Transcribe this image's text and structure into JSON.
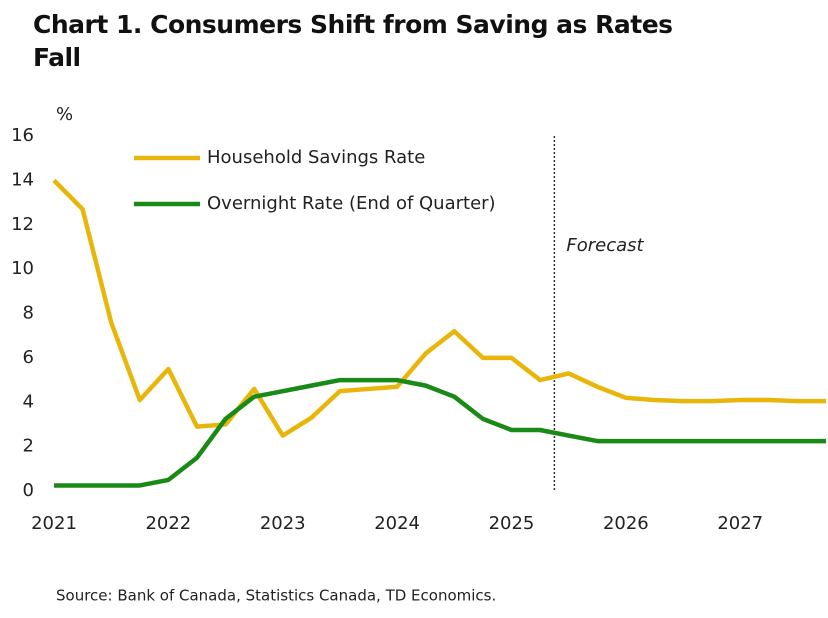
{
  "chart_data": {
    "type": "line",
    "title": "Chart 1. Consumers Shift from Saving as Rates Fall",
    "y_label": "%",
    "source": "Source: Bank of Canada, Statistics Canada, TD Economics.",
    "annotation": {
      "text": "Forecast",
      "x": 2025.375
    },
    "x": [
      2021,
      2021.25,
      2021.5,
      2021.75,
      2022,
      2022.25,
      2022.5,
      2022.75,
      2023,
      2023.25,
      2023.5,
      2023.75,
      2024,
      2024.25,
      2024.5,
      2024.75,
      2025,
      2025.25,
      2025.5,
      2025.75,
      2026,
      2026.25,
      2026.5,
      2026.75,
      2027,
      2027.25,
      2027.5,
      2027.75
    ],
    "series": [
      {
        "name": "Household Savings Rate",
        "color": "#e8b60b",
        "values": [
          14.0,
          12.7,
          7.6,
          4.1,
          5.5,
          2.9,
          3.0,
          4.6,
          2.5,
          3.3,
          4.5,
          4.6,
          4.7,
          6.2,
          7.2,
          6.0,
          6.0,
          5.0,
          5.3,
          4.7,
          4.2,
          4.1,
          4.05,
          4.05,
          4.1,
          4.1,
          4.05,
          4.05
        ]
      },
      {
        "name": "Overnight Rate (End of Quarter)",
        "color": "#1a8a16",
        "values": [
          0.25,
          0.25,
          0.25,
          0.25,
          0.5,
          1.5,
          3.25,
          4.25,
          4.5,
          4.75,
          5.0,
          5.0,
          5.0,
          4.75,
          4.25,
          3.25,
          2.75,
          2.75,
          2.5,
          2.25,
          2.25,
          2.25,
          2.25,
          2.25,
          2.25,
          2.25,
          2.25,
          2.25
        ]
      }
    ],
    "xlim": [
      2021,
      2027.75
    ],
    "xticks": [
      2021,
      2022,
      2023,
      2024,
      2025,
      2026,
      2027
    ],
    "ylim": [
      0,
      16
    ],
    "yticks": [
      0,
      2,
      4,
      6,
      8,
      10,
      12,
      14,
      16
    ],
    "legend": "upper-left"
  }
}
